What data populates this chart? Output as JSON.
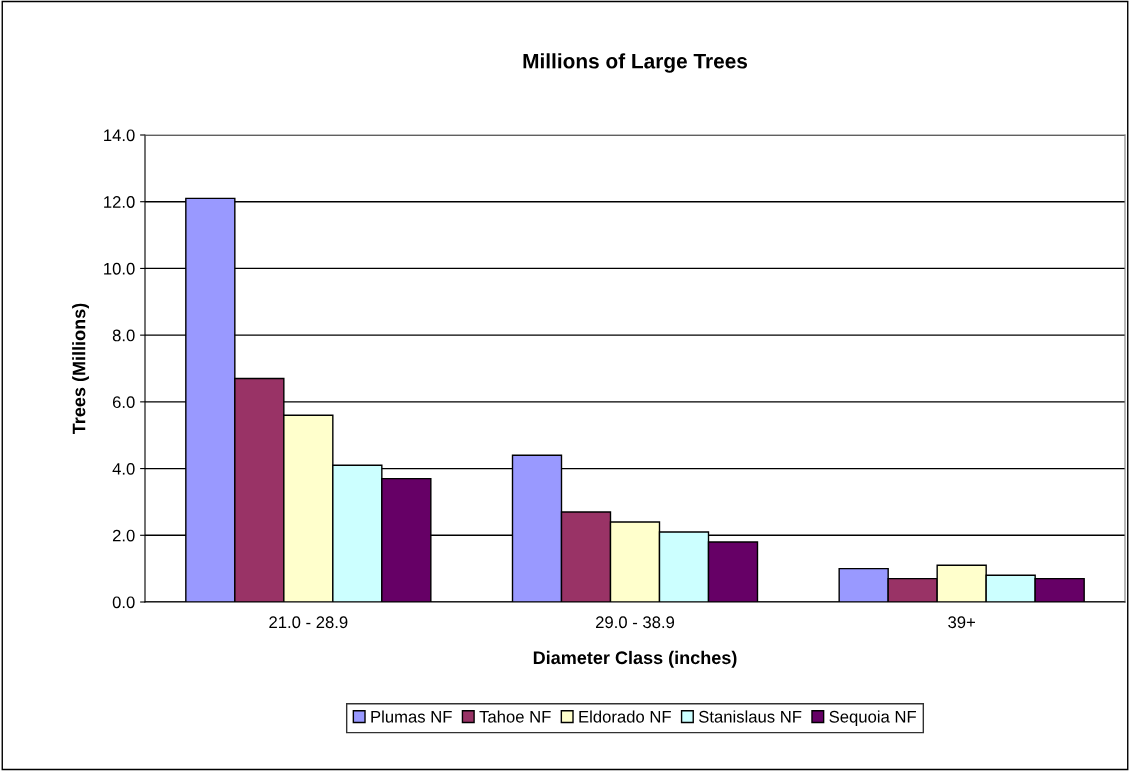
{
  "chart_data": {
    "type": "bar",
    "title": "Millions of Large Trees",
    "xlabel": "Diameter Class (inches)",
    "ylabel": "Trees (Millions)",
    "categories": [
      "21.0 - 28.9",
      "29.0 - 38.9",
      "39+"
    ],
    "series": [
      {
        "name": "Plumas NF",
        "color": "#9999ff",
        "values": [
          12.1,
          4.4,
          1.0
        ]
      },
      {
        "name": "Tahoe NF",
        "color": "#993366",
        "values": [
          6.7,
          2.7,
          0.7
        ]
      },
      {
        "name": "Eldorado NF",
        "color": "#ffffcc",
        "values": [
          5.6,
          2.4,
          1.1
        ]
      },
      {
        "name": "Stanislaus NF",
        "color": "#ccffff",
        "values": [
          4.1,
          2.1,
          0.8
        ]
      },
      {
        "name": "Sequoia NF",
        "color": "#660066",
        "values": [
          3.7,
          1.8,
          0.7
        ]
      }
    ],
    "ylim": [
      0,
      14
    ],
    "yticks": [
      {
        "value": 0,
        "label": "0.0"
      },
      {
        "value": 2,
        "label": "2.0"
      },
      {
        "value": 4,
        "label": "4.0"
      },
      {
        "value": 6,
        "label": "6.0"
      },
      {
        "value": 8,
        "label": "8.0"
      },
      {
        "value": 10,
        "label": "10.0"
      },
      {
        "value": 12,
        "label": "12.0"
      },
      {
        "value": 14,
        "label": "14.0"
      }
    ],
    "grid": "y",
    "legend": "bottom"
  }
}
